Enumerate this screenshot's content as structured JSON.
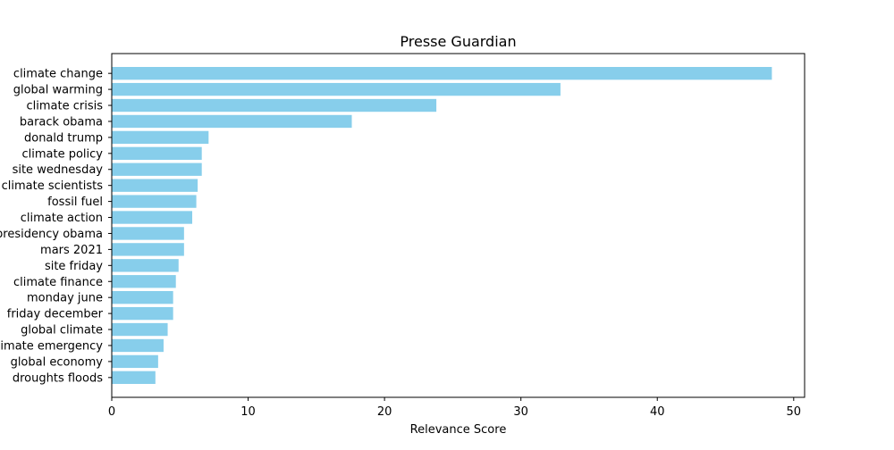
{
  "chart_data": {
    "type": "bar",
    "orientation": "horizontal",
    "title": "Presse Guardian",
    "xlabel": "Relevance Score",
    "ylabel": "",
    "xlim": [
      0,
      50.8
    ],
    "xticks": [
      0,
      10,
      20,
      30,
      40,
      50
    ],
    "grid": false,
    "categories": [
      "climate change",
      "global warming",
      "climate crisis",
      "barack obama",
      "donald trump",
      "climate policy",
      "site wednesday",
      "climate scientists",
      "fossil fuel",
      "climate action",
      "presidency obama",
      "mars 2021",
      "site friday",
      "climate finance",
      "monday june",
      "friday december",
      "global climate",
      "climate emergency",
      "global economy",
      "droughts floods"
    ],
    "values": [
      48.4,
      32.9,
      23.8,
      17.6,
      7.1,
      6.6,
      6.6,
      6.3,
      6.2,
      5.9,
      5.3,
      5.3,
      4.9,
      4.7,
      4.5,
      4.5,
      4.1,
      3.8,
      3.4,
      3.2
    ],
    "bar_color": "#87ceeb"
  }
}
